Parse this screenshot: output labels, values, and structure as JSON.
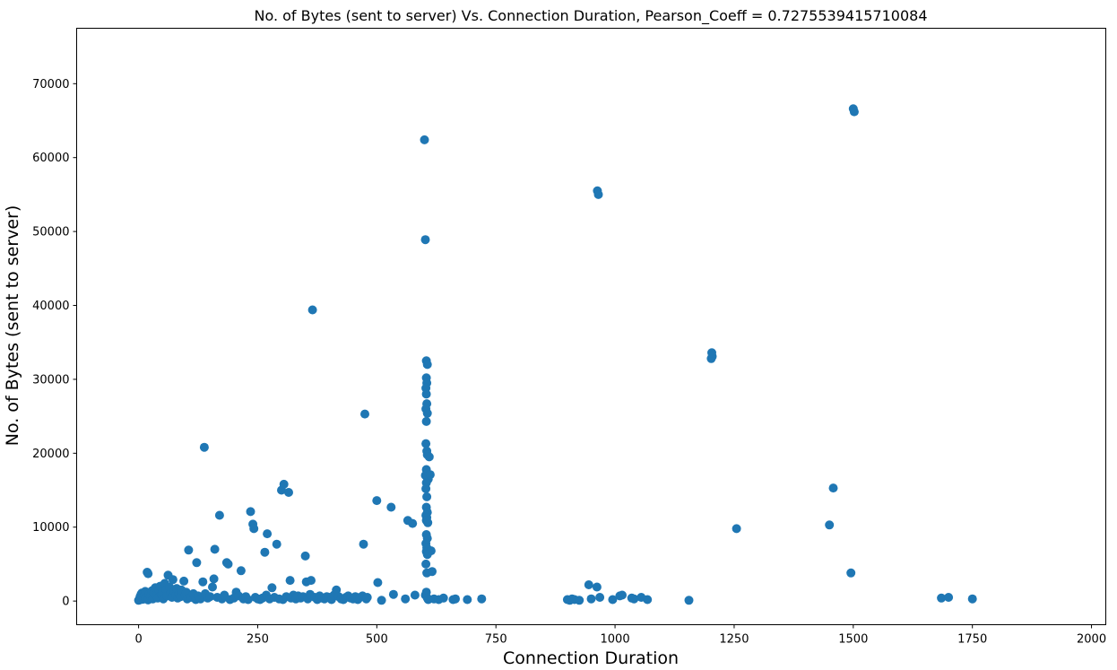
{
  "chart_data": {
    "type": "scatter",
    "title": "No. of Bytes (sent to server) Vs. Connection Duration, Pearson_Coeff = 0.7275539415710084",
    "xlabel": "Connection Duration",
    "ylabel": "No. of Bytes (sent to server)",
    "xlim": [
      -130,
      2030
    ],
    "ylim": [
      -3200,
      77500
    ],
    "x_ticks": [
      0,
      250,
      500,
      750,
      1000,
      1250,
      1500,
      1750,
      2000
    ],
    "x_tick_labels": [
      "0",
      "250",
      "500",
      "750",
      "1000",
      "1250",
      "1500",
      "1750",
      "2000"
    ],
    "y_ticks": [
      0,
      10000,
      20000,
      30000,
      40000,
      50000,
      60000,
      70000
    ],
    "y_tick_labels": [
      "0",
      "10000",
      "20000",
      "30000",
      "40000",
      "50000",
      "60000",
      "70000"
    ],
    "grid": false,
    "legend": "none",
    "marker_color": "#1f77b4",
    "points": [
      [
        0,
        100
      ],
      [
        2,
        300
      ],
      [
        3,
        600
      ],
      [
        5,
        900
      ],
      [
        5,
        200
      ],
      [
        7,
        1100
      ],
      [
        8,
        500
      ],
      [
        10,
        250
      ],
      [
        12,
        800
      ],
      [
        14,
        1300
      ],
      [
        15,
        400
      ],
      [
        18,
        3900
      ],
      [
        20,
        3700
      ],
      [
        20,
        150
      ],
      [
        22,
        900
      ],
      [
        25,
        600
      ],
      [
        28,
        1400
      ],
      [
        30,
        300
      ],
      [
        32,
        1100
      ],
      [
        35,
        1800
      ],
      [
        38,
        700
      ],
      [
        40,
        400
      ],
      [
        42,
        1600
      ],
      [
        45,
        2000
      ],
      [
        48,
        900
      ],
      [
        50,
        1200
      ],
      [
        52,
        300
      ],
      [
        55,
        2400
      ],
      [
        58,
        1500
      ],
      [
        60,
        700
      ],
      [
        62,
        3500
      ],
      [
        65,
        1900
      ],
      [
        68,
        1100
      ],
      [
        70,
        500
      ],
      [
        72,
        2900
      ],
      [
        75,
        1300
      ],
      [
        78,
        800
      ],
      [
        80,
        1700
      ],
      [
        82,
        400
      ],
      [
        85,
        1000
      ],
      [
        88,
        600
      ],
      [
        90,
        1500
      ],
      [
        95,
        2700
      ],
      [
        98,
        800
      ],
      [
        100,
        1200
      ],
      [
        102,
        300
      ],
      [
        105,
        6900
      ],
      [
        110,
        500
      ],
      [
        115,
        1000
      ],
      [
        120,
        200
      ],
      [
        122,
        5200
      ],
      [
        125,
        700
      ],
      [
        130,
        300
      ],
      [
        135,
        2600
      ],
      [
        138,
        20800
      ],
      [
        140,
        1000
      ],
      [
        145,
        400
      ],
      [
        150,
        600
      ],
      [
        155,
        1900
      ],
      [
        158,
        3000
      ],
      [
        160,
        7000
      ],
      [
        165,
        500
      ],
      [
        170,
        11600
      ],
      [
        175,
        300
      ],
      [
        180,
        800
      ],
      [
        185,
        5200
      ],
      [
        188,
        5000
      ],
      [
        192,
        200
      ],
      [
        200,
        400
      ],
      [
        205,
        1200
      ],
      [
        210,
        700
      ],
      [
        215,
        4100
      ],
      [
        220,
        300
      ],
      [
        225,
        600
      ],
      [
        230,
        200
      ],
      [
        235,
        12100
      ],
      [
        240,
        10400
      ],
      [
        242,
        9800
      ],
      [
        245,
        500
      ],
      [
        250,
        300
      ],
      [
        255,
        200
      ],
      [
        260,
        400
      ],
      [
        265,
        6600
      ],
      [
        268,
        800
      ],
      [
        270,
        9100
      ],
      [
        275,
        300
      ],
      [
        280,
        1800
      ],
      [
        285,
        500
      ],
      [
        290,
        7700
      ],
      [
        295,
        300
      ],
      [
        300,
        15000
      ],
      [
        303,
        200
      ],
      [
        305,
        15800
      ],
      [
        310,
        600
      ],
      [
        315,
        14700
      ],
      [
        318,
        2800
      ],
      [
        320,
        400
      ],
      [
        325,
        800
      ],
      [
        330,
        300
      ],
      [
        335,
        700
      ],
      [
        340,
        400
      ],
      [
        345,
        600
      ],
      [
        350,
        6100
      ],
      [
        352,
        2600
      ],
      [
        355,
        300
      ],
      [
        360,
        900
      ],
      [
        362,
        2800
      ],
      [
        365,
        39400
      ],
      [
        370,
        500
      ],
      [
        375,
        200
      ],
      [
        380,
        700
      ],
      [
        385,
        400
      ],
      [
        390,
        300
      ],
      [
        395,
        600
      ],
      [
        400,
        500
      ],
      [
        405,
        200
      ],
      [
        410,
        800
      ],
      [
        415,
        1500
      ],
      [
        420,
        600
      ],
      [
        425,
        300
      ],
      [
        430,
        200
      ],
      [
        435,
        500
      ],
      [
        440,
        700
      ],
      [
        445,
        400
      ],
      [
        450,
        300
      ],
      [
        455,
        600
      ],
      [
        460,
        200
      ],
      [
        465,
        500
      ],
      [
        470,
        700
      ],
      [
        472,
        7700
      ],
      [
        475,
        25300
      ],
      [
        478,
        300
      ],
      [
        480,
        500
      ],
      [
        500,
        13600
      ],
      [
        502,
        2500
      ],
      [
        510,
        100
      ],
      [
        530,
        12700
      ],
      [
        535,
        900
      ],
      [
        560,
        300
      ],
      [
        565,
        10900
      ],
      [
        575,
        10500
      ],
      [
        580,
        800
      ],
      [
        600,
        62400
      ],
      [
        602,
        48900
      ],
      [
        604,
        32500
      ],
      [
        606,
        32000
      ],
      [
        604,
        30200
      ],
      [
        605,
        29500
      ],
      [
        603,
        28800
      ],
      [
        604,
        28000
      ],
      [
        605,
        26700
      ],
      [
        603,
        26000
      ],
      [
        606,
        25400
      ],
      [
        604,
        24300
      ],
      [
        603,
        21300
      ],
      [
        605,
        20300
      ],
      [
        606,
        19800
      ],
      [
        610,
        19500
      ],
      [
        604,
        17800
      ],
      [
        602,
        17000
      ],
      [
        606,
        16700
      ],
      [
        608,
        16500
      ],
      [
        604,
        16000
      ],
      [
        603,
        15200
      ],
      [
        605,
        14100
      ],
      [
        604,
        12700
      ],
      [
        606,
        12000
      ],
      [
        603,
        11600
      ],
      [
        605,
        11300
      ],
      [
        604,
        10900
      ],
      [
        607,
        10600
      ],
      [
        604,
        9000
      ],
      [
        606,
        8500
      ],
      [
        603,
        7800
      ],
      [
        605,
        7200
      ],
      [
        604,
        6700
      ],
      [
        606,
        6300
      ],
      [
        603,
        5000
      ],
      [
        605,
        3800
      ],
      [
        604,
        1200
      ],
      [
        602,
        800
      ],
      [
        606,
        400
      ],
      [
        608,
        200
      ],
      [
        612,
        17100
      ],
      [
        614,
        6800
      ],
      [
        616,
        4000
      ],
      [
        620,
        300
      ],
      [
        630,
        200
      ],
      [
        640,
        400
      ],
      [
        660,
        200
      ],
      [
        665,
        300
      ],
      [
        690,
        200
      ],
      [
        720,
        300
      ],
      [
        900,
        200
      ],
      [
        905,
        100
      ],
      [
        910,
        300
      ],
      [
        915,
        200
      ],
      [
        925,
        100
      ],
      [
        945,
        2200
      ],
      [
        950,
        300
      ],
      [
        962,
        1900
      ],
      [
        963,
        55500
      ],
      [
        965,
        55000
      ],
      [
        968,
        500
      ],
      [
        995,
        200
      ],
      [
        1010,
        700
      ],
      [
        1015,
        800
      ],
      [
        1035,
        400
      ],
      [
        1040,
        300
      ],
      [
        1055,
        500
      ],
      [
        1068,
        200
      ],
      [
        1155,
        100
      ],
      [
        1202,
        32800
      ],
      [
        1204,
        33100
      ],
      [
        1203,
        33600
      ],
      [
        1255,
        9800
      ],
      [
        1450,
        10300
      ],
      [
        1458,
        15300
      ],
      [
        1495,
        3800
      ],
      [
        1500,
        66600
      ],
      [
        1502,
        66200
      ],
      [
        1685,
        400
      ],
      [
        1700,
        500
      ],
      [
        1750,
        300
      ]
    ]
  }
}
